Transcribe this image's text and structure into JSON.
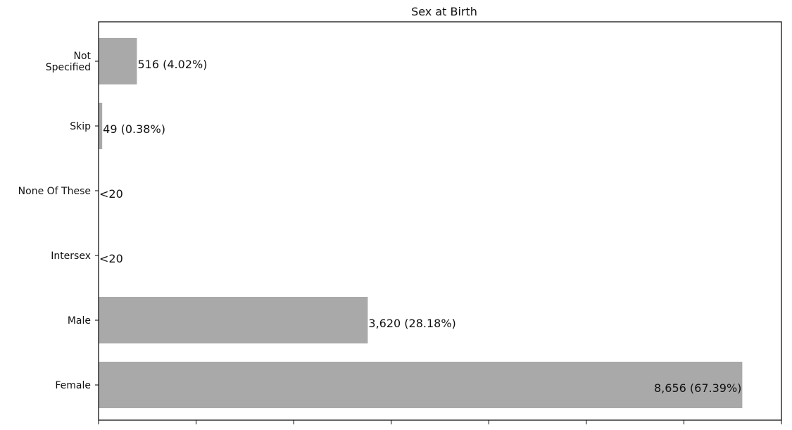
{
  "chart_data": {
    "type": "bar",
    "orientation": "horizontal",
    "title": "Sex at Birth",
    "xlabel": "",
    "ylabel": "",
    "categories": [
      "Female",
      "Male",
      "Intersex",
      "None Of These",
      "Skip",
      "Not Specified"
    ],
    "category_lines": [
      [
        "Female"
      ],
      [
        "Male"
      ],
      [
        "Intersex"
      ],
      [
        "None Of These"
      ],
      [
        "Skip"
      ],
      [
        "Not",
        "Specified"
      ]
    ],
    "values": [
      8656,
      3620,
      0,
      0,
      49,
      516
    ],
    "data_labels": [
      "8,656 (67.39%)",
      "3,620 (28.18%)",
      "<20",
      "<20",
      "49 (0.38%)",
      "516 (4.02%)"
    ],
    "label_placement": [
      "inside",
      "outside",
      "outside",
      "outside",
      "outside",
      "outside"
    ],
    "xlim": [
      0,
      8870
    ],
    "x_ticks": [
      0,
      1280,
      2560,
      3840,
      5120,
      6400,
      7680,
      8960
    ],
    "x_tick_labels_visible": false,
    "bar_color": "#a9a9a9",
    "grid": false,
    "legend": "none"
  }
}
